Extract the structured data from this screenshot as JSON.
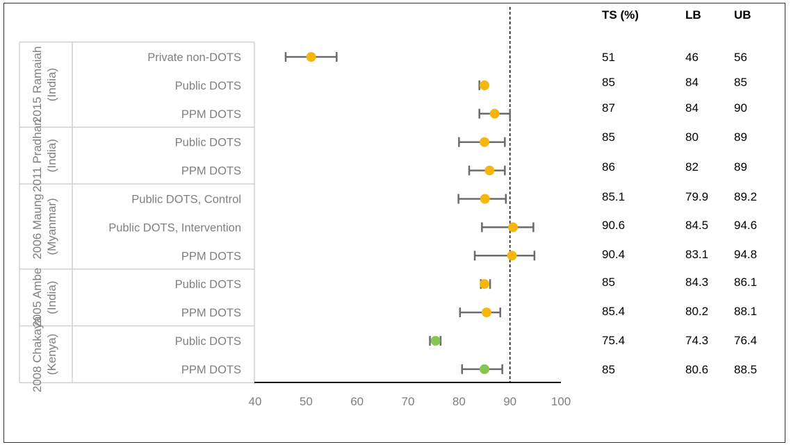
{
  "chart_data": {
    "type": "forest",
    "title": "",
    "xlabel": "",
    "ylabel": "",
    "xlim": [
      40,
      100
    ],
    "x_ticks": [
      40,
      50,
      60,
      70,
      80,
      90,
      100
    ],
    "reference_line": 90,
    "column_headers": [
      "TS (%)",
      "LB",
      "UB"
    ],
    "marker_colors": {
      "orange": "#F5B60F",
      "green": "#86C551"
    },
    "whisker_color": "#6b6b6b",
    "groups": [
      {
        "study": "2015 Ramaiah (India)",
        "line1": "2015 Ramaiah",
        "line2": "(India)"
      },
      {
        "study": "2011 Pradhan (India)",
        "line1": "2011 Pradhan",
        "line2": "(India)"
      },
      {
        "study": "2006 Maung (Myanmar)",
        "line1": "2006 Maung",
        "line2": "(Myanmar)"
      },
      {
        "study": "2005 Ambe (India)",
        "line1": "2005 Ambe",
        "line2": "(India)"
      },
      {
        "study": "2008 Chakaya (Kenya)",
        "line1": "2008 Chakaya",
        "line2": "(Kenya)"
      }
    ],
    "rows": [
      {
        "group": 0,
        "label": "Private non-DOTS",
        "ts": 51,
        "lb": 46,
        "ub": 56,
        "ts_text": "51",
        "lb_text": "46",
        "ub_text": "56",
        "color": "orange"
      },
      {
        "group": 0,
        "label": "Public DOTS",
        "ts": 85,
        "lb": 84,
        "ub": 85,
        "ts_text": "85",
        "lb_text": "84",
        "ub_text": "85",
        "color": "orange"
      },
      {
        "group": 0,
        "label": "PPM DOTS",
        "ts": 87,
        "lb": 84,
        "ub": 90,
        "ts_text": "87",
        "lb_text": "84",
        "ub_text": "90",
        "color": "orange"
      },
      {
        "group": 1,
        "label": "Public DOTS",
        "ts": 85,
        "lb": 80,
        "ub": 89,
        "ts_text": "85",
        "lb_text": "80",
        "ub_text": "89",
        "color": "orange"
      },
      {
        "group": 1,
        "label": "PPM DOTS",
        "ts": 86,
        "lb": 82,
        "ub": 89,
        "ts_text": "86",
        "lb_text": "82",
        "ub_text": "89",
        "color": "orange"
      },
      {
        "group": 2,
        "label": "Public DOTS, Control",
        "ts": 85.1,
        "lb": 79.9,
        "ub": 89.2,
        "ts_text": "85.1",
        "lb_text": "79.9",
        "ub_text": "89.2",
        "color": "orange"
      },
      {
        "group": 2,
        "label": "Public DOTS, Intervention",
        "ts": 90.6,
        "lb": 84.5,
        "ub": 94.6,
        "ts_text": "90.6",
        "lb_text": "84.5",
        "ub_text": "94.6",
        "color": "orange"
      },
      {
        "group": 2,
        "label": "PPM DOTS",
        "ts": 90.4,
        "lb": 83.1,
        "ub": 94.8,
        "ts_text": "90.4",
        "lb_text": "83.1",
        "ub_text": "94.8",
        "color": "orange"
      },
      {
        "group": 3,
        "label": "Public DOTS",
        "ts": 85,
        "lb": 84.3,
        "ub": 86.1,
        "ts_text": "85",
        "lb_text": "84.3",
        "ub_text": "86.1",
        "color": "orange"
      },
      {
        "group": 3,
        "label": "PPM DOTS",
        "ts": 85.4,
        "lb": 80.2,
        "ub": 88.1,
        "ts_text": "85.4",
        "lb_text": "80.2",
        "ub_text": "88.1",
        "color": "orange"
      },
      {
        "group": 4,
        "label": "Public DOTS",
        "ts": 75.4,
        "lb": 74.3,
        "ub": 76.4,
        "ts_text": "75.4",
        "lb_text": "74.3",
        "ub_text": "76.4",
        "color": "green"
      },
      {
        "group": 4,
        "label": "PPM DOTS",
        "ts": 85,
        "lb": 80.6,
        "ub": 88.5,
        "ts_text": "85",
        "lb_text": "80.6",
        "ub_text": "88.5",
        "color": "green"
      }
    ]
  }
}
